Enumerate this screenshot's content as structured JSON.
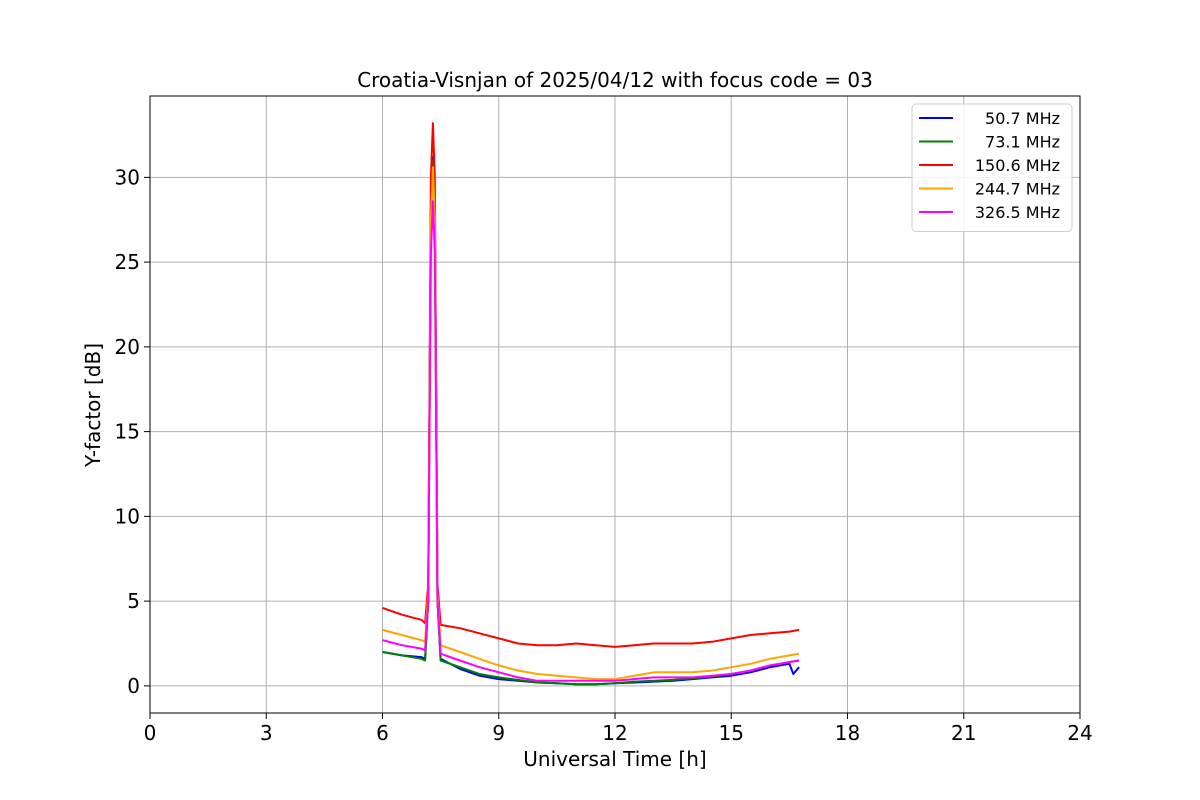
{
  "chart_data": {
    "type": "line",
    "title": "Croatia-Visnjan of 2025/04/12 with focus code = 03",
    "xlabel": "Universal Time [h]",
    "ylabel": "Y-factor [dB]",
    "xlim": [
      0,
      24
    ],
    "ylim": [
      -1.6,
      34.8
    ],
    "xticks": [
      0,
      3,
      6,
      9,
      12,
      15,
      18,
      21,
      24
    ],
    "yticks": [
      0,
      5,
      10,
      15,
      20,
      25,
      30
    ],
    "grid": true,
    "legend_position": "top-right",
    "series": [
      {
        "name": "50.7 MHz",
        "color": "#0000ff",
        "points": [
          [
            6.0,
            2.0
          ],
          [
            6.5,
            1.8
          ],
          [
            7.0,
            1.7
          ],
          [
            7.1,
            1.6
          ],
          [
            7.18,
            5.0
          ],
          [
            7.25,
            28.0
          ],
          [
            7.3,
            31.2
          ],
          [
            7.35,
            28.0
          ],
          [
            7.42,
            5.0
          ],
          [
            7.5,
            1.6
          ],
          [
            8.0,
            1.0
          ],
          [
            8.5,
            0.6
          ],
          [
            9.0,
            0.4
          ],
          [
            9.5,
            0.3
          ],
          [
            10.0,
            0.2
          ],
          [
            10.5,
            0.15
          ],
          [
            11.0,
            0.1
          ],
          [
            11.5,
            0.1
          ],
          [
            12.0,
            0.15
          ],
          [
            12.5,
            0.2
          ],
          [
            13.0,
            0.25
          ],
          [
            13.5,
            0.3
          ],
          [
            14.0,
            0.4
          ],
          [
            14.5,
            0.5
          ],
          [
            15.0,
            0.6
          ],
          [
            15.5,
            0.8
          ],
          [
            16.0,
            1.1
          ],
          [
            16.5,
            1.3
          ],
          [
            16.6,
            0.7
          ],
          [
            16.75,
            1.1
          ]
        ]
      },
      {
        "name": "73.1 MHz",
        "color": "#008000",
        "points": [
          [
            6.0,
            2.0
          ],
          [
            6.5,
            1.8
          ],
          [
            7.0,
            1.6
          ],
          [
            7.1,
            1.5
          ],
          [
            7.18,
            5.0
          ],
          [
            7.25,
            28.0
          ],
          [
            7.3,
            31.0
          ],
          [
            7.35,
            28.0
          ],
          [
            7.42,
            5.0
          ],
          [
            7.5,
            1.5
          ],
          [
            8.0,
            1.1
          ],
          [
            8.5,
            0.7
          ],
          [
            9.0,
            0.5
          ],
          [
            9.5,
            0.35
          ],
          [
            10.0,
            0.2
          ],
          [
            10.5,
            0.15
          ],
          [
            11.0,
            0.1
          ],
          [
            11.5,
            0.1
          ],
          [
            12.0,
            0.15
          ],
          [
            12.5,
            0.25
          ],
          [
            13.0,
            0.3
          ],
          [
            13.5,
            0.35
          ],
          [
            14.0,
            0.45
          ],
          [
            14.5,
            0.55
          ],
          [
            15.0,
            0.7
          ],
          [
            15.5,
            0.9
          ],
          [
            16.0,
            1.2
          ],
          [
            16.5,
            1.4
          ],
          [
            16.75,
            1.5
          ]
        ]
      },
      {
        "name": "150.6 MHz",
        "color": "#ff0000",
        "points": [
          [
            6.0,
            4.6
          ],
          [
            6.5,
            4.2
          ],
          [
            7.0,
            3.9
          ],
          [
            7.1,
            3.7
          ],
          [
            7.18,
            6.0
          ],
          [
            7.25,
            30.0
          ],
          [
            7.3,
            33.2
          ],
          [
            7.35,
            30.0
          ],
          [
            7.42,
            6.0
          ],
          [
            7.5,
            3.6
          ],
          [
            8.0,
            3.4
          ],
          [
            8.5,
            3.1
          ],
          [
            9.0,
            2.8
          ],
          [
            9.5,
            2.5
          ],
          [
            10.0,
            2.4
          ],
          [
            10.5,
            2.4
          ],
          [
            11.0,
            2.5
          ],
          [
            11.5,
            2.4
          ],
          [
            12.0,
            2.3
          ],
          [
            12.5,
            2.4
          ],
          [
            13.0,
            2.5
          ],
          [
            13.5,
            2.5
          ],
          [
            14.0,
            2.5
          ],
          [
            14.5,
            2.6
          ],
          [
            15.0,
            2.8
          ],
          [
            15.5,
            3.0
          ],
          [
            16.0,
            3.1
          ],
          [
            16.5,
            3.2
          ],
          [
            16.75,
            3.3
          ]
        ]
      },
      {
        "name": "244.7 MHz",
        "color": "#ffa500",
        "points": [
          [
            6.0,
            3.3
          ],
          [
            6.5,
            3.0
          ],
          [
            7.0,
            2.7
          ],
          [
            7.1,
            2.6
          ],
          [
            7.18,
            5.5
          ],
          [
            7.25,
            27.5
          ],
          [
            7.3,
            30.6
          ],
          [
            7.35,
            27.5
          ],
          [
            7.42,
            5.5
          ],
          [
            7.5,
            2.4
          ],
          [
            8.0,
            2.0
          ],
          [
            8.5,
            1.6
          ],
          [
            9.0,
            1.2
          ],
          [
            9.5,
            0.9
          ],
          [
            10.0,
            0.7
          ],
          [
            10.5,
            0.6
          ],
          [
            11.0,
            0.5
          ],
          [
            11.5,
            0.4
          ],
          [
            12.0,
            0.4
          ],
          [
            12.5,
            0.6
          ],
          [
            13.0,
            0.8
          ],
          [
            13.5,
            0.8
          ],
          [
            14.0,
            0.8
          ],
          [
            14.5,
            0.9
          ],
          [
            15.0,
            1.1
          ],
          [
            15.5,
            1.3
          ],
          [
            16.0,
            1.6
          ],
          [
            16.5,
            1.8
          ],
          [
            16.75,
            1.9
          ]
        ]
      },
      {
        "name": "326.5 MHz",
        "color": "#ff00ff",
        "points": [
          [
            6.0,
            2.7
          ],
          [
            6.5,
            2.4
          ],
          [
            7.0,
            2.2
          ],
          [
            7.1,
            2.1
          ],
          [
            7.18,
            5.0
          ],
          [
            7.25,
            25.5
          ],
          [
            7.3,
            28.6
          ],
          [
            7.35,
            25.5
          ],
          [
            7.42,
            5.0
          ],
          [
            7.5,
            1.9
          ],
          [
            8.0,
            1.5
          ],
          [
            8.5,
            1.1
          ],
          [
            9.0,
            0.8
          ],
          [
            9.5,
            0.5
          ],
          [
            10.0,
            0.3
          ],
          [
            10.5,
            0.3
          ],
          [
            11.0,
            0.3
          ],
          [
            11.5,
            0.3
          ],
          [
            12.0,
            0.3
          ],
          [
            12.5,
            0.4
          ],
          [
            13.0,
            0.5
          ],
          [
            13.5,
            0.5
          ],
          [
            14.0,
            0.5
          ],
          [
            14.5,
            0.6
          ],
          [
            15.0,
            0.7
          ],
          [
            15.5,
            0.9
          ],
          [
            16.0,
            1.2
          ],
          [
            16.5,
            1.4
          ],
          [
            16.75,
            1.5
          ]
        ]
      }
    ]
  }
}
